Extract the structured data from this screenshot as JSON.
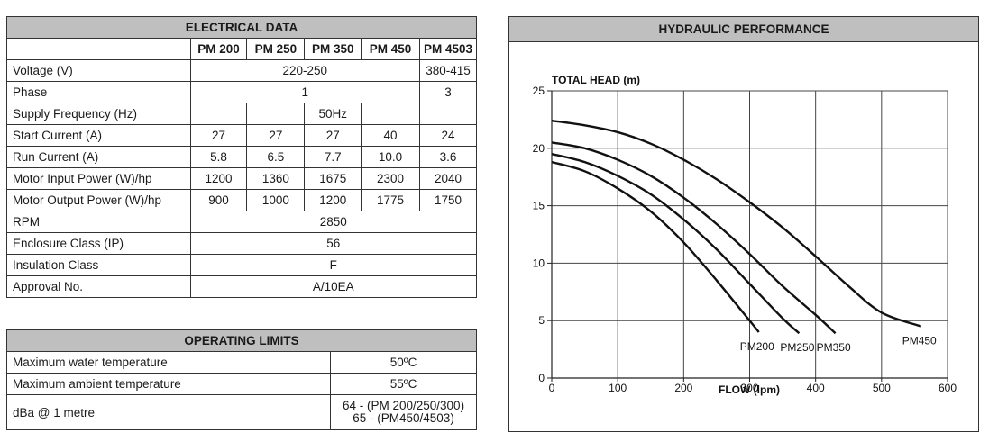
{
  "electrical": {
    "title": "ELECTRICAL DATA",
    "columns": [
      "PM 200",
      "PM 250",
      "PM 350",
      "PM 450",
      "PM 4503"
    ],
    "rows": [
      {
        "label": "Voltage (V)",
        "merged": "220-250",
        "last": "380-415"
      },
      {
        "label": "Phase",
        "merged": "1",
        "last": "3"
      },
      {
        "label": "Supply Frequency (Hz)",
        "value": "50Hz"
      },
      {
        "label": "Start Current (A)",
        "values": [
          "27",
          "27",
          "27",
          "40",
          "24"
        ]
      },
      {
        "label": "Run Current (A)",
        "values": [
          "5.8",
          "6.5",
          "7.7",
          "10.0",
          "3.6"
        ]
      },
      {
        "label": "Motor Input Power (W)/hp",
        "values": [
          "1200",
          "1360",
          "1675",
          "2300",
          "2040"
        ]
      },
      {
        "label": "Motor Output Power (W)/hp",
        "values": [
          "900",
          "1000",
          "1200",
          "1775",
          "1750"
        ]
      },
      {
        "label": "RPM",
        "value": "2850"
      },
      {
        "label": "Enclosure Class (IP)",
        "value": "56"
      },
      {
        "label": "Insulation Class",
        "value": "F"
      },
      {
        "label": "Approval No.",
        "value": "A/10EA"
      }
    ]
  },
  "operating_limits": {
    "title": "OPERATING LIMITS",
    "rows": [
      {
        "label": "Maximum water temperature",
        "value": "50ºC"
      },
      {
        "label": "Maximum ambient temperature",
        "value": "55ºC"
      },
      {
        "label": "dBa @ 1 metre",
        "value_line1": "64 - (PM 200/250/300)",
        "value_line2": "65 - (PM450/4503)"
      }
    ]
  },
  "chart_data": {
    "type": "line",
    "title": "HYDRAULIC PERFORMANCE",
    "xlabel": "FLOW (lpm)",
    "ylabel": "TOTAL HEAD (m)",
    "xlim": [
      0,
      600
    ],
    "ylim": [
      0,
      25
    ],
    "xticks": [
      0,
      100,
      200,
      300,
      400,
      500,
      600
    ],
    "yticks": [
      0,
      5,
      10,
      15,
      20,
      25
    ],
    "grid": true,
    "series": [
      {
        "name": "PM200",
        "points": [
          [
            0,
            18.8
          ],
          [
            50,
            18.0
          ],
          [
            100,
            16.5
          ],
          [
            150,
            14.5
          ],
          [
            200,
            11.8
          ],
          [
            250,
            8.5
          ],
          [
            300,
            5.0
          ],
          [
            314,
            4.0
          ]
        ]
      },
      {
        "name": "PM250",
        "points": [
          [
            0,
            19.5
          ],
          [
            50,
            18.8
          ],
          [
            100,
            17.6
          ],
          [
            150,
            16.0
          ],
          [
            200,
            13.8
          ],
          [
            250,
            11.2
          ],
          [
            300,
            8.2
          ],
          [
            350,
            5.2
          ],
          [
            375,
            3.9
          ]
        ]
      },
      {
        "name": "PM350",
        "points": [
          [
            0,
            20.5
          ],
          [
            50,
            20.0
          ],
          [
            100,
            19.0
          ],
          [
            150,
            17.6
          ],
          [
            200,
            15.7
          ],
          [
            250,
            13.4
          ],
          [
            300,
            10.8
          ],
          [
            350,
            8.0
          ],
          [
            400,
            5.5
          ],
          [
            430,
            3.9
          ]
        ]
      },
      {
        "name": "PM450",
        "points": [
          [
            0,
            22.4
          ],
          [
            50,
            22.0
          ],
          [
            100,
            21.4
          ],
          [
            150,
            20.4
          ],
          [
            200,
            19.0
          ],
          [
            250,
            17.3
          ],
          [
            300,
            15.3
          ],
          [
            350,
            13.1
          ],
          [
            400,
            10.6
          ],
          [
            450,
            8.0
          ],
          [
            500,
            5.7
          ],
          [
            560,
            4.5
          ]
        ]
      }
    ]
  }
}
